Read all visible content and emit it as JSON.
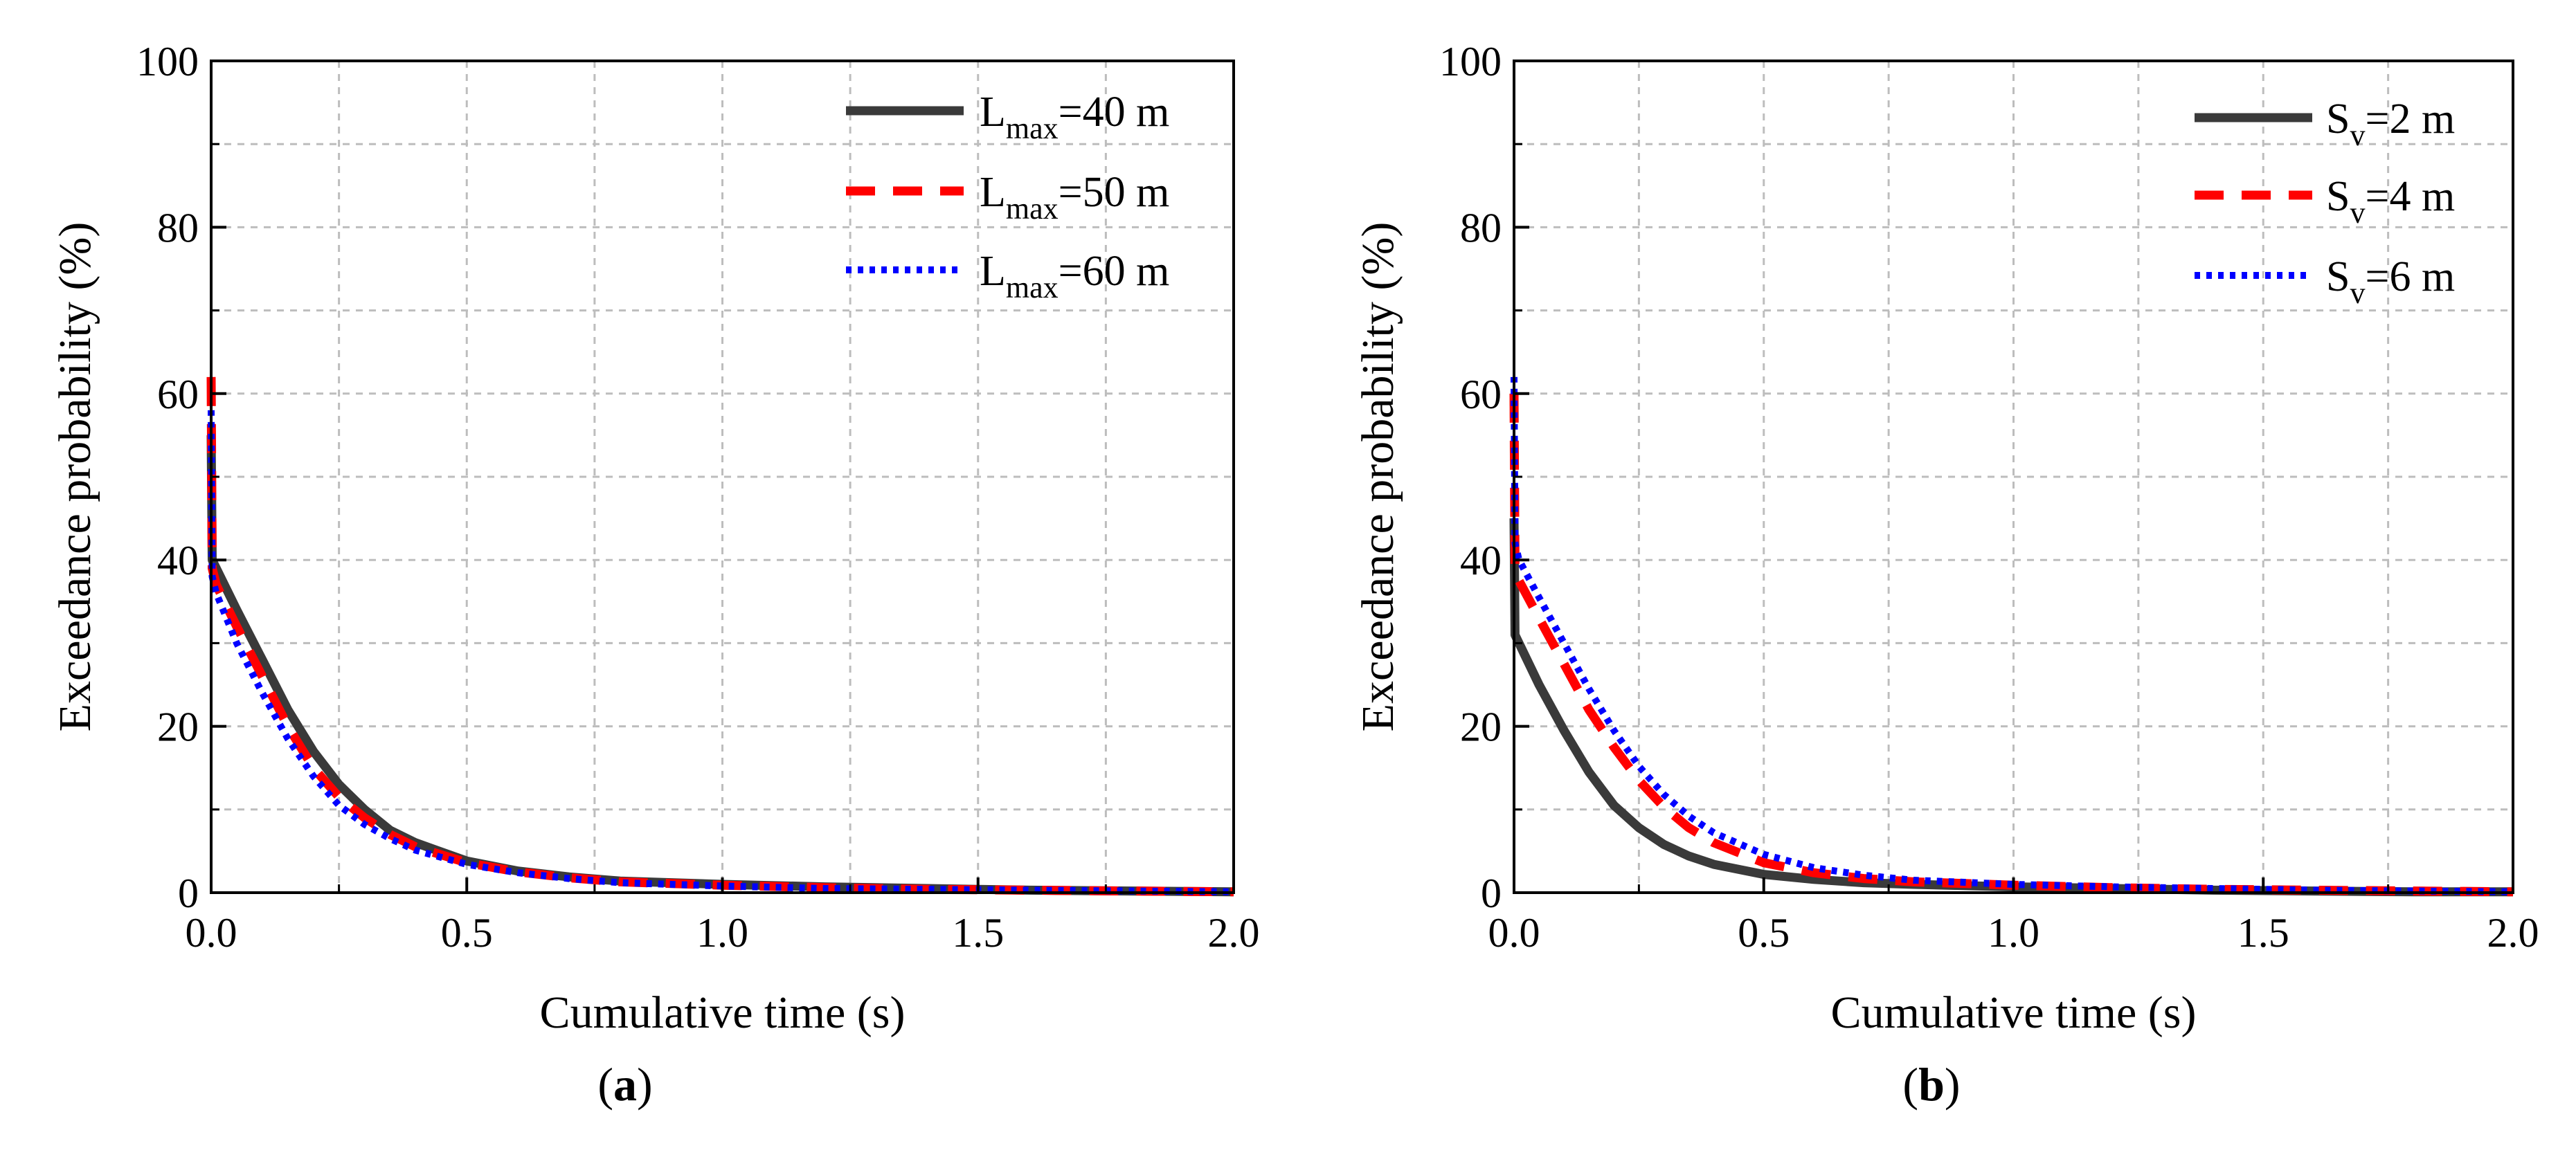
{
  "chart_data": [
    {
      "type": "line",
      "panel_label": "a",
      "xlabel": "Cumulative time (s)",
      "ylabel": "Exceedance probability (%)",
      "xlim": [
        0,
        2.0
      ],
      "ylim": [
        0,
        100
      ],
      "xticks": [
        "0.0",
        "0.5",
        "1.0",
        "1.5",
        "2.0"
      ],
      "yticks": [
        "0",
        "20",
        "40",
        "60",
        "80",
        "100"
      ],
      "grid": true,
      "legend_position": "top-right",
      "series": [
        {
          "name": "Lmax=40 m",
          "legend_main": "L",
          "legend_sub": "max",
          "legend_tail": "=40 m",
          "color": "#3a3a3a",
          "style": "solid",
          "x": [
            0,
            0.002,
            0.01,
            0.05,
            0.1,
            0.15,
            0.2,
            0.25,
            0.3,
            0.35,
            0.4,
            0.5,
            0.6,
            0.7,
            0.8,
            1.0,
            1.2,
            1.4,
            1.6,
            1.8,
            2.0
          ],
          "y": [
            55,
            40,
            39,
            34,
            28,
            22,
            17,
            13,
            10,
            7.5,
            6,
            3.8,
            2.6,
            1.9,
            1.4,
            1.0,
            0.7,
            0.5,
            0.3,
            0.2,
            0.1
          ]
        },
        {
          "name": "Lmax=50 m",
          "legend_main": "L",
          "legend_sub": "max",
          "legend_tail": "=50 m",
          "color": "#ff0000",
          "style": "dashed",
          "x": [
            0,
            0.002,
            0.01,
            0.05,
            0.1,
            0.15,
            0.2,
            0.25,
            0.3,
            0.35,
            0.4,
            0.5,
            0.6,
            0.7,
            0.8,
            1.0,
            1.2,
            1.4,
            1.6,
            1.8,
            2.0
          ],
          "y": [
            62,
            39,
            37,
            32,
            26,
            20,
            15,
            11.5,
            9,
            7,
            5.5,
            3.6,
            2.5,
            1.8,
            1.3,
            0.9,
            0.6,
            0.4,
            0.3,
            0.2,
            0.1
          ]
        },
        {
          "name": "Lmax=60 m",
          "legend_main": "L",
          "legend_sub": "max",
          "legend_tail": "=60 m",
          "color": "#0000ff",
          "style": "dotted",
          "x": [
            0,
            0.002,
            0.01,
            0.05,
            0.1,
            0.15,
            0.2,
            0.25,
            0.3,
            0.35,
            0.4,
            0.5,
            0.6,
            0.7,
            0.8,
            1.0,
            1.2,
            1.4,
            1.6,
            1.8,
            2.0
          ],
          "y": [
            58,
            38,
            36,
            30,
            24,
            18.5,
            14,
            10.5,
            8.2,
            6.5,
            5.1,
            3.4,
            2.4,
            1.7,
            1.2,
            0.8,
            0.5,
            0.4,
            0.3,
            0.2,
            0.1
          ]
        }
      ]
    },
    {
      "type": "line",
      "panel_label": "b",
      "xlabel": "Cumulative time (s)",
      "ylabel": "Exceedance probability (%)",
      "xlim": [
        0,
        2.0
      ],
      "ylim": [
        0,
        100
      ],
      "xticks": [
        "0.0",
        "0.5",
        "1.0",
        "1.5",
        "2.0"
      ],
      "yticks": [
        "0",
        "20",
        "40",
        "60",
        "80",
        "100"
      ],
      "grid": true,
      "legend_position": "top-right",
      "series": [
        {
          "name": "Sv=2 m",
          "legend_main": "S",
          "legend_sub": "v",
          "legend_tail": "=2 m",
          "color": "#3a3a3a",
          "style": "solid",
          "x": [
            0,
            0.002,
            0.01,
            0.05,
            0.1,
            0.15,
            0.2,
            0.25,
            0.3,
            0.35,
            0.4,
            0.5,
            0.6,
            0.7,
            0.8,
            1.0,
            1.2,
            1.4,
            1.6,
            1.8,
            2.0
          ],
          "y": [
            45,
            31,
            30,
            25,
            19.5,
            14.5,
            10.5,
            7.8,
            5.8,
            4.4,
            3.4,
            2.2,
            1.6,
            1.2,
            1.0,
            0.7,
            0.5,
            0.3,
            0.2,
            0.1,
            0.1
          ]
        },
        {
          "name": "Sv=4 m",
          "legend_main": "S",
          "legend_sub": "v",
          "legend_tail": "=4 m",
          "color": "#ff0000",
          "style": "dashed",
          "x": [
            0,
            0.002,
            0.01,
            0.05,
            0.1,
            0.15,
            0.2,
            0.25,
            0.3,
            0.35,
            0.4,
            0.5,
            0.6,
            0.7,
            0.8,
            1.0,
            1.2,
            1.4,
            1.6,
            1.8,
            2.0
          ],
          "y": [
            60,
            39,
            37.5,
            33,
            27.5,
            22,
            17.5,
            13.5,
            10.3,
            7.8,
            6,
            3.6,
            2.4,
            1.7,
            1.3,
            0.9,
            0.6,
            0.4,
            0.3,
            0.2,
            0.1
          ]
        },
        {
          "name": "Sv=6 m",
          "legend_main": "S",
          "legend_sub": "v",
          "legend_tail": "=6 m",
          "color": "#0000ff",
          "style": "dotted",
          "x": [
            0,
            0.002,
            0.01,
            0.05,
            0.1,
            0.15,
            0.2,
            0.25,
            0.3,
            0.35,
            0.4,
            0.5,
            0.6,
            0.7,
            0.8,
            1.0,
            1.2,
            1.4,
            1.6,
            1.8,
            2.0
          ],
          "y": [
            62,
            42,
            40,
            35.5,
            30,
            24.5,
            19.5,
            15.2,
            11.8,
            9.2,
            7.2,
            4.6,
            3.0,
            2.1,
            1.5,
            1.0,
            0.7,
            0.5,
            0.3,
            0.2,
            0.1
          ]
        }
      ]
    }
  ]
}
